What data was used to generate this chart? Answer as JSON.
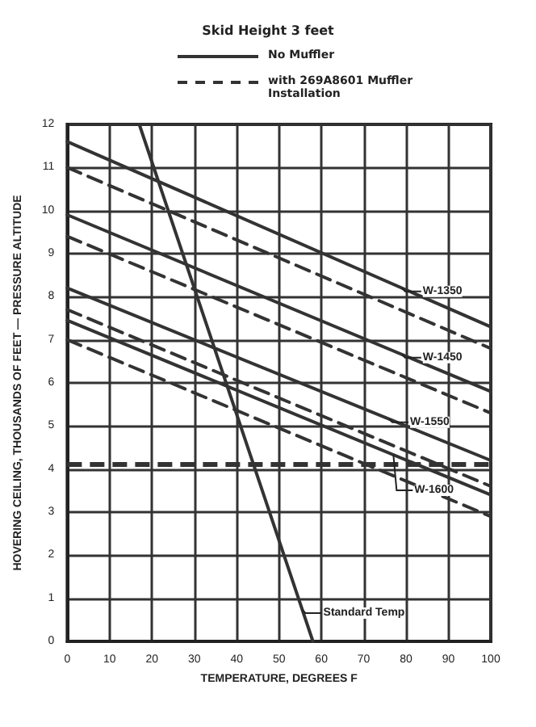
{
  "chart_data": {
    "type": "line",
    "title": "Skid Height 3 feet",
    "xlabel": "TEMPERATURE, DEGREES F",
    "ylabel": "HOVERING CEILING, THOUSANDS OF FEET — PRESSURE ALTITUDE",
    "xlim": [
      0,
      100
    ],
    "xticks": [
      0,
      10,
      20,
      30,
      40,
      50,
      60,
      70,
      80,
      90,
      100
    ],
    "ylim": [
      0,
      12
    ],
    "yticks": [
      0,
      1,
      2,
      3,
      4,
      5,
      6,
      7,
      8,
      9,
      10,
      11,
      12
    ],
    "grid": true,
    "series": [
      {
        "color": "#333333",
        "line_style": "solid",
        "x": [
          0,
          100
        ],
        "values": [
          11.6,
          7.3
        ]
      },
      {
        "color": "#333333",
        "line_style": "dashed",
        "x": [
          0,
          100
        ],
        "values": [
          11.0,
          6.8
        ]
      },
      {
        "color": "#333333",
        "line_style": "solid",
        "x": [
          0,
          100
        ],
        "values": [
          9.9,
          5.8
        ]
      },
      {
        "color": "#333333",
        "line_style": "dashed",
        "x": [
          0,
          100
        ],
        "values": [
          9.4,
          5.3
        ]
      },
      {
        "color": "#333333",
        "line_style": "solid",
        "x": [
          0,
          100
        ],
        "values": [
          8.2,
          4.2
        ]
      },
      {
        "color": "#333333",
        "line_style": "dashed",
        "x": [
          0,
          100
        ],
        "values": [
          7.7,
          3.6
        ]
      },
      {
        "color": "#333333",
        "line_style": "solid",
        "x": [
          0,
          100
        ],
        "values": [
          7.45,
          3.4
        ]
      },
      {
        "color": "#333333",
        "line_style": "dashed",
        "x": [
          0,
          100
        ],
        "values": [
          7.0,
          2.9
        ]
      },
      {
        "color": "#333333",
        "line_style": "solid",
        "x": [
          17,
          58
        ],
        "values": [
          12,
          0
        ]
      }
    ],
    "ref_lines": [
      {
        "axis": "y",
        "value": 4.1,
        "color": "#333333",
        "line_style": "dashed"
      }
    ],
    "annotations": [
      "No Muffler",
      "with 269A8601 Muffler Installation",
      {
        "text": "W-1350",
        "x": 79,
        "y": 8.2
      },
      {
        "text": "W-1450",
        "x": 79,
        "y": 6.66
      },
      {
        "text": "W-1550",
        "x": 76,
        "y": 5.16
      },
      {
        "text": "W-1600",
        "x": 77,
        "y": 4.33
      },
      {
        "text": "Standard Temp",
        "x": 55.5,
        "y": 0.73
      }
    ]
  }
}
